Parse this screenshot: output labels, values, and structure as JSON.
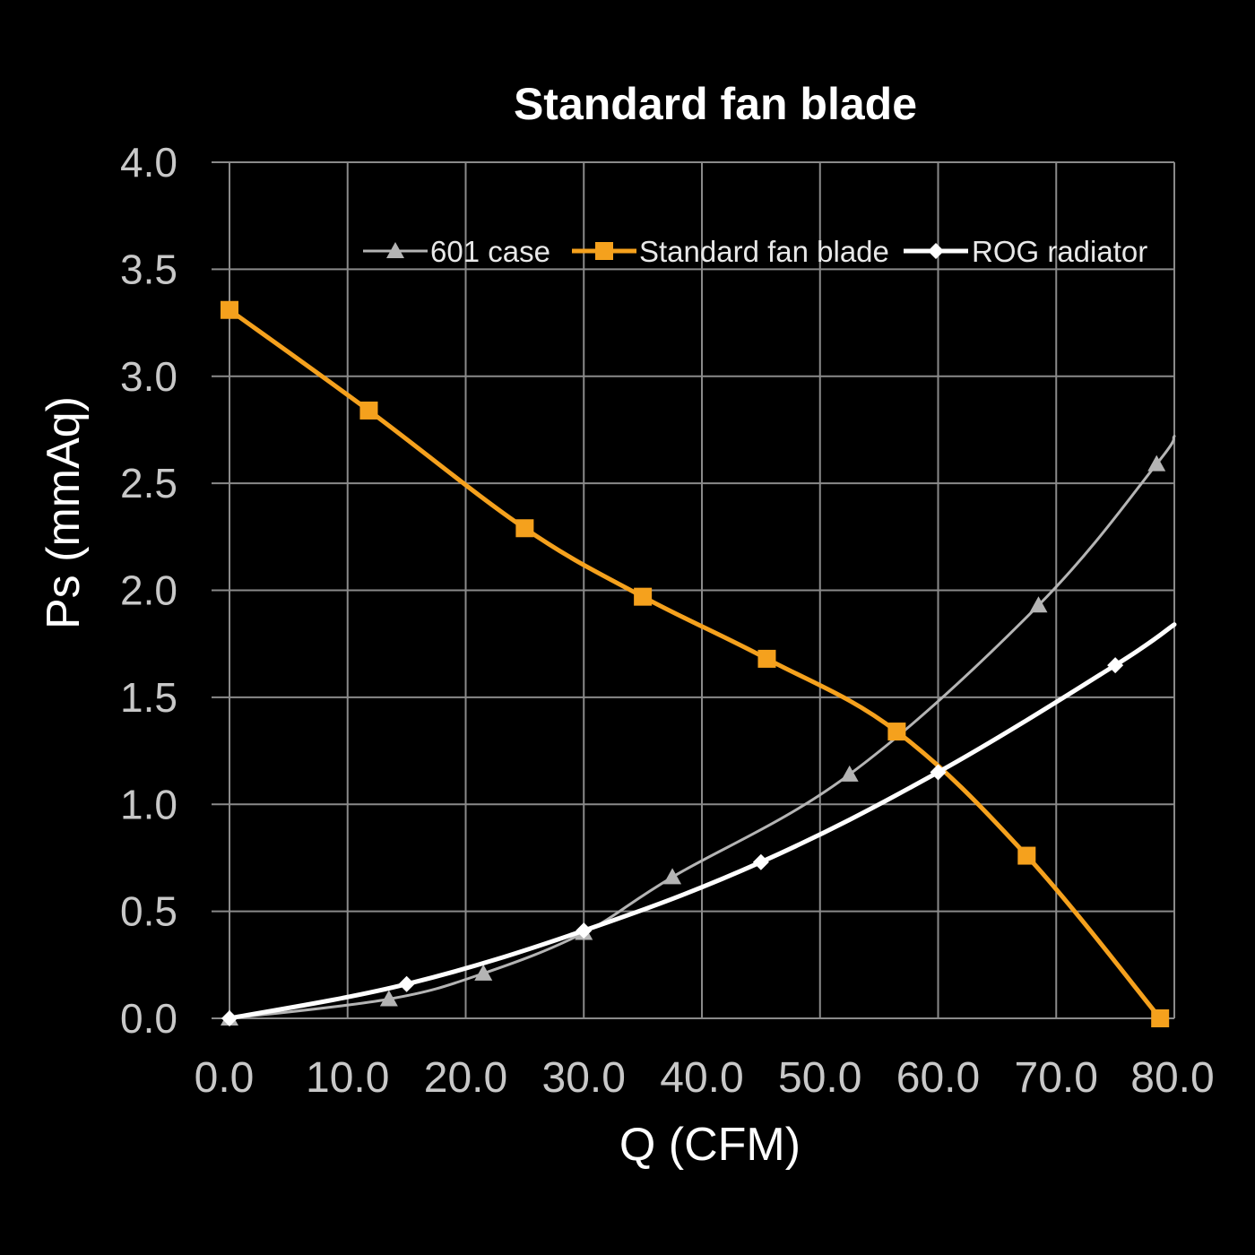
{
  "chart_data": {
    "type": "line",
    "title": "Standard fan blade",
    "xlabel": "Q (CFM)",
    "ylabel": "Ps (mmAq)",
    "xlim": [
      0,
      80
    ],
    "ylim": [
      0,
      4
    ],
    "x_ticks": [
      "0.0",
      "10.0",
      "20.0",
      "30.0",
      "40.0",
      "50.0",
      "60.0",
      "70.0",
      "80.0"
    ],
    "y_ticks": [
      "0.0",
      "0.5",
      "1.0",
      "1.5",
      "2.0",
      "2.5",
      "3.0",
      "3.5",
      "4.0"
    ],
    "grid": true,
    "legend_position": "top-right",
    "series": [
      {
        "name": "601 case",
        "color": "#b4b4b4",
        "marker": "triangle",
        "x": [
          0,
          13.5,
          21.5,
          30.0,
          37.5,
          52.5,
          68.5,
          78.5,
          80.0
        ],
        "y": [
          0.0,
          0.09,
          0.21,
          0.4,
          0.66,
          1.14,
          1.93,
          2.59,
          2.72
        ],
        "marker_mask": [
          true,
          true,
          true,
          true,
          true,
          true,
          true,
          true,
          false
        ]
      },
      {
        "name": "Standard fan blade",
        "color": "#f5a11d",
        "marker": "square",
        "x": [
          0,
          11.8,
          25.0,
          35.0,
          45.5,
          56.5,
          67.5,
          78.8
        ],
        "y": [
          3.31,
          2.84,
          2.29,
          1.97,
          1.68,
          1.34,
          0.76,
          0.0
        ],
        "marker_mask": [
          true,
          true,
          true,
          true,
          true,
          true,
          true,
          true
        ]
      },
      {
        "name": "ROG radiator",
        "color": "#ffffff",
        "marker": "diamond",
        "x": [
          0,
          15.0,
          30.0,
          45.0,
          60.0,
          75.0,
          80.0
        ],
        "y": [
          0.0,
          0.16,
          0.41,
          0.73,
          1.15,
          1.65,
          1.84
        ],
        "marker_mask": [
          true,
          true,
          true,
          true,
          true,
          true,
          false
        ]
      }
    ]
  }
}
